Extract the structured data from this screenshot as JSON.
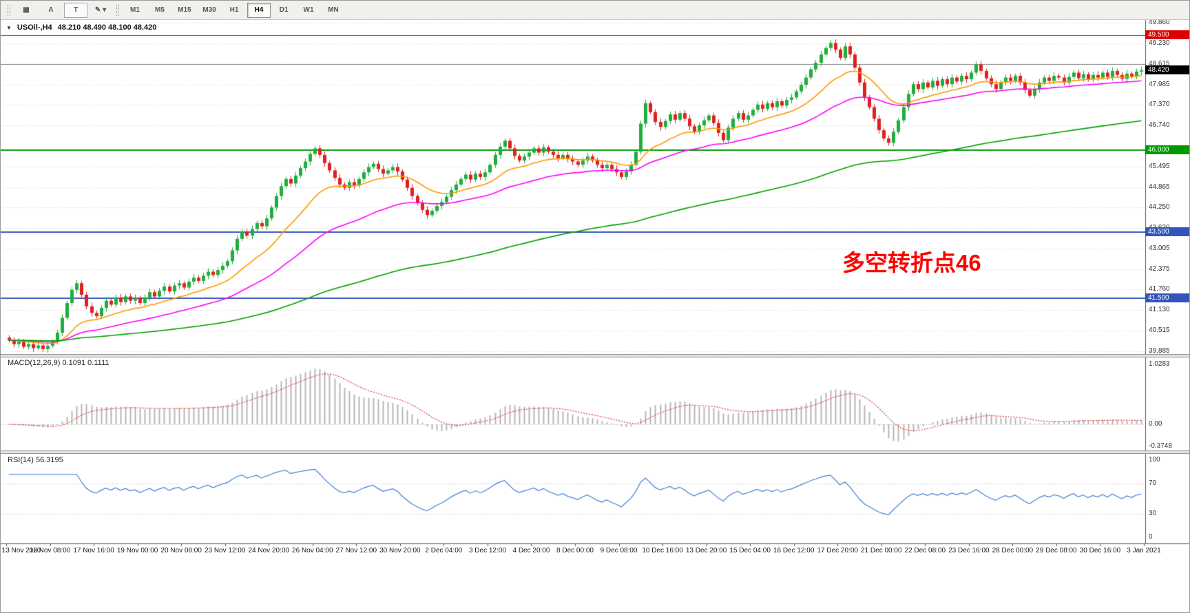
{
  "toolbar": {
    "left_buttons": [
      {
        "name": "chart-grid-icon-button",
        "label": "▦",
        "boxed": false
      },
      {
        "name": "text-tool-button",
        "label": "A",
        "boxed": false
      },
      {
        "name": "label-tool-button",
        "label": "T",
        "boxed": true
      },
      {
        "name": "draw-tools-dropdown-button",
        "label": "✎ ▾",
        "boxed": false
      }
    ],
    "timeframes": [
      {
        "label": "M1",
        "active": false
      },
      {
        "label": "M5",
        "active": false
      },
      {
        "label": "M15",
        "active": false
      },
      {
        "label": "M30",
        "active": false
      },
      {
        "label": "H1",
        "active": false
      },
      {
        "label": "H4",
        "active": true
      },
      {
        "label": "D1",
        "active": false
      },
      {
        "label": "W1",
        "active": false
      },
      {
        "label": "MN",
        "active": false
      }
    ]
  },
  "chart": {
    "title": {
      "symbol_period": "USOil-,H4",
      "ohlc": "48.210 48.490 48.100 48.420"
    },
    "annotation": {
      "text": "多空转折点46",
      "color": "#ff0000"
    },
    "macd_label": "MACD(12,26,9) 0.1091 0.1111",
    "rsi_label": "RSI(14) 56.3195",
    "price_axis_labels": [
      "49.860",
      "49.230",
      "48.615",
      "47.985",
      "47.370",
      "46.740",
      "45.495",
      "44.865",
      "44.250",
      "43.620",
      "43.005",
      "42.375",
      "41.760",
      "41.130",
      "40.515",
      "39.885"
    ],
    "time_axis_labels": [
      "13 Nov 2020",
      "16 Nov 08:00",
      "17 Nov 16:00",
      "19 Nov 00:00",
      "20 Nov 08:00",
      "23 Nov 12:00",
      "24 Nov 20:00",
      "26 Nov 04:00",
      "27 Nov 12:00",
      "30 Nov 20:00",
      "2 Dec 04:00",
      "3 Dec 12:00",
      "4 Dec 20:00",
      "8 Dec 00:00",
      "9 Dec 08:00",
      "10 Dec 16:00",
      "13 Dec 20:00",
      "15 Dec 04:00",
      "16 Dec 12:00",
      "17 Dec 20:00",
      "21 Dec 00:00",
      "22 Dec 08:00",
      "23 Dec 16:00",
      "28 Dec 00:00",
      "29 Dec 08:00",
      "30 Dec 16:00",
      "3 Jan 2021"
    ],
    "lines": [
      {
        "price": 49.5,
        "label": "49.500",
        "color": "#dd0000",
        "width": 1
      },
      {
        "price": 48.615,
        "label": "",
        "color": "#808080",
        "width": 1
      },
      {
        "price": 46.0,
        "label": "46.000",
        "color": "#009900",
        "width": 2
      },
      {
        "price": 43.5,
        "label": "43.500",
        "color": "#3355bb",
        "width": 2
      },
      {
        "price": 41.5,
        "label": "41.500",
        "color": "#3355bb",
        "width": 2
      }
    ],
    "current_price": {
      "value": 48.42,
      "label": "48.420",
      "box_color": "#000000",
      "text_color": "#ffffff"
    }
  },
  "chart_data": {
    "type": "candlestick",
    "symbol": "USOil-",
    "timeframe": "H4",
    "current_ohlc": {
      "open": 48.21,
      "high": 48.49,
      "low": 48.1,
      "close": 48.42
    },
    "y_range": [
      39.8,
      49.95
    ],
    "first_open": 40.3,
    "wick_size": 0.07,
    "up_color": "#1fae3e",
    "down_color": "#e02020",
    "closes": [
      40.22,
      40.1,
      40.18,
      40.02,
      40.1,
      39.98,
      40.06,
      39.95,
      40.05,
      40.18,
      40.45,
      40.9,
      41.35,
      41.75,
      41.95,
      41.6,
      41.25,
      41.05,
      40.95,
      41.2,
      41.42,
      41.3,
      41.52,
      41.38,
      41.55,
      41.42,
      41.5,
      41.35,
      41.52,
      41.68,
      41.55,
      41.72,
      41.85,
      41.7,
      41.88,
      41.95,
      41.82,
      42.0,
      42.12,
      42.02,
      42.18,
      42.3,
      42.2,
      42.35,
      42.48,
      42.62,
      42.95,
      43.3,
      43.52,
      43.4,
      43.6,
      43.78,
      43.68,
      43.92,
      44.25,
      44.6,
      44.9,
      45.12,
      44.98,
      45.22,
      45.45,
      45.65,
      45.88,
      46.05,
      45.85,
      45.6,
      45.38,
      45.15,
      44.95,
      44.85,
      45.02,
      44.92,
      45.12,
      45.32,
      45.48,
      45.58,
      45.42,
      45.28,
      45.38,
      45.48,
      45.35,
      45.1,
      44.85,
      44.6,
      44.38,
      44.18,
      44.02,
      44.15,
      44.3,
      44.42,
      44.58,
      44.78,
      44.95,
      45.12,
      45.25,
      45.1,
      45.28,
      45.18,
      45.32,
      45.55,
      45.85,
      46.1,
      46.28,
      46.05,
      45.82,
      45.68,
      45.8,
      45.92,
      46.05,
      45.92,
      46.08,
      45.95,
      45.85,
      45.75,
      45.85,
      45.72,
      45.65,
      45.55,
      45.68,
      45.8,
      45.68,
      45.55,
      45.45,
      45.55,
      45.42,
      45.32,
      45.18,
      45.35,
      45.55,
      45.95,
      46.8,
      47.42,
      47.15,
      46.85,
      46.7,
      46.88,
      47.08,
      46.92,
      47.12,
      46.95,
      46.72,
      46.55,
      46.75,
      46.9,
      47.05,
      46.82,
      46.52,
      46.3,
      46.68,
      46.95,
      47.12,
      46.92,
      47.05,
      47.22,
      47.38,
      47.25,
      47.42,
      47.3,
      47.48,
      47.35,
      47.52,
      47.6,
      47.78,
      47.98,
      48.2,
      48.45,
      48.65,
      48.9,
      49.1,
      49.25,
      49.05,
      48.8,
      49.15,
      48.9,
      48.5,
      48.05,
      47.6,
      47.3,
      46.95,
      46.6,
      46.35,
      46.22,
      46.55,
      46.9,
      47.3,
      47.7,
      48.0,
      47.85,
      48.05,
      47.9,
      48.1,
      47.95,
      48.15,
      48.0,
      48.2,
      48.08,
      48.25,
      48.15,
      48.35,
      48.6,
      48.4,
      48.18,
      48.0,
      47.85,
      48.05,
      48.2,
      48.1,
      48.25,
      48.05,
      47.82,
      47.65,
      47.85,
      48.05,
      48.2,
      48.1,
      48.25,
      48.2,
      48.05,
      48.22,
      48.35,
      48.18,
      48.3,
      48.15,
      48.28,
      48.2,
      48.35,
      48.22,
      48.4,
      48.28,
      48.16,
      48.32,
      48.24,
      48.38,
      48.42
    ],
    "moving_averages": [
      {
        "name": "ma-fast",
        "period": 18,
        "color": "#ff9900"
      },
      {
        "name": "ma-medium",
        "period": 45,
        "color": "#ff00ff"
      },
      {
        "name": "ma-slow",
        "period": 150,
        "color": "#00a000"
      }
    ],
    "macd": {
      "fast": 12,
      "slow": 26,
      "signal_period": 9,
      "current_main": 0.1091,
      "current_signal": 0.1111,
      "y_range": [
        -0.45,
        1.15
      ],
      "axis_values": [
        1.0283,
        0.0,
        -0.3748
      ],
      "axis_labels": [
        "1.0283",
        "0.00",
        "-0.3748"
      ],
      "hist_color": "#b6b6b6",
      "signal_color": "#e03131"
    },
    "rsi": {
      "period": 14,
      "current": 56.3195,
      "color": "#3f7fd4",
      "levels": [
        70,
        30
      ],
      "level_color": "#b8bccc",
      "y_range": [
        -8,
        108
      ],
      "axis_values": [
        100,
        70,
        30,
        0
      ],
      "axis_labels": [
        "100",
        "70",
        "30",
        "0"
      ]
    }
  }
}
